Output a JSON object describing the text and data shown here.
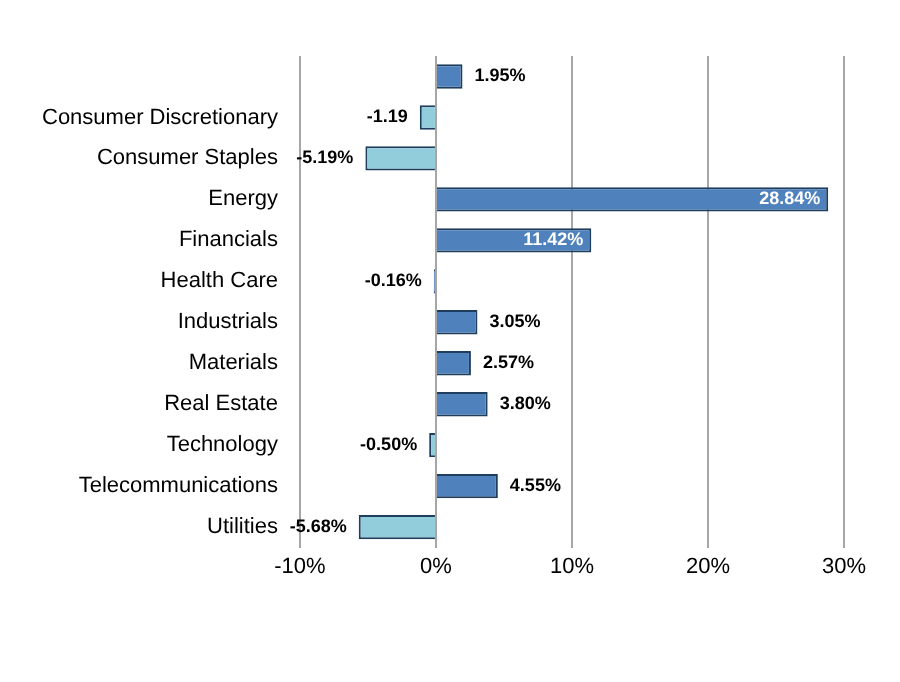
{
  "chart_data": {
    "type": "bar",
    "orientation": "horizontal",
    "categories": [
      null,
      "Consumer Discretionary",
      "Consumer Staples",
      "Energy",
      "Financials",
      "Health Care",
      "Industrials",
      "Materials",
      "Real Estate",
      "Technology",
      "Telecommunications",
      "Utilities"
    ],
    "values": [
      1.95,
      -1.19,
      -5.19,
      28.84,
      11.42,
      -0.16,
      3.05,
      2.57,
      3.8,
      -0.5,
      4.55,
      -5.68
    ],
    "colors": [
      "#4f81bd",
      "#92cddc",
      "#92cddc",
      "#4f81bd",
      "#4f81bd",
      "#4f81bd",
      "#4f81bd",
      "#4f81bd",
      "#4f81bd",
      "#92cddc",
      "#4f81bd",
      "#92cddc"
    ],
    "value_labels": [
      "1.95%",
      "-1.19",
      "-5.19%",
      "28.84%",
      "11.42%",
      "-0.16%",
      "3.05%",
      "2.57%",
      "3.80%",
      "-0.50%",
      "4.55%",
      "-5.68%"
    ],
    "xlim": [
      -10,
      30
    ],
    "xticks": [
      {
        "value": -10,
        "label": "-10%"
      },
      {
        "value": 0,
        "label": "0%"
      },
      {
        "value": 10,
        "label": "10%"
      },
      {
        "value": 20,
        "label": "20%"
      },
      {
        "value": 30,
        "label": "30%"
      }
    ],
    "grid": "x",
    "legend": false
  }
}
